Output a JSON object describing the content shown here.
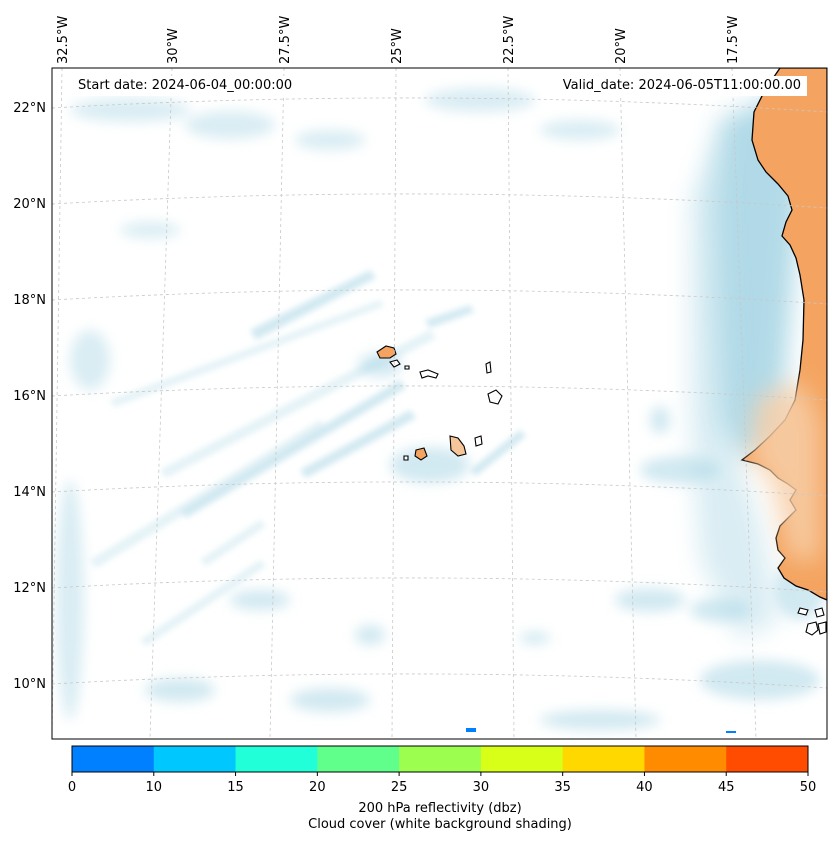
{
  "map": {
    "start_date": "Start date: 2024-06-04_00:00:00",
    "valid_date": "Valid_date: 2024-06-05T11:00:00.00",
    "lon_labels": [
      "32.5°W",
      "30°W",
      "27.5°W",
      "25°W",
      "22.5°W",
      "20°W",
      "17.5°W"
    ],
    "lat_labels": [
      "22°N",
      "20°N",
      "18°N",
      "16°N",
      "14°N",
      "12°N",
      "10°N"
    ],
    "colors": {
      "land": "#f4a460",
      "cloud": "#add8e6",
      "coastline": "#000000",
      "grid": "#c8c8c8"
    }
  },
  "colorbar": {
    "title": "200 hPa reflectivity (dbz)",
    "subtitle": "Cloud cover (white background shading)",
    "ticks": [
      "0",
      "10",
      "15",
      "20",
      "25",
      "30",
      "35",
      "40",
      "45",
      "50"
    ],
    "colors": [
      "#0080ff",
      "#00c8ff",
      "#20ffd8",
      "#60ff8c",
      "#9cff50",
      "#d8ff18",
      "#ffd800",
      "#ff8c00",
      "#ff4c00"
    ]
  }
}
